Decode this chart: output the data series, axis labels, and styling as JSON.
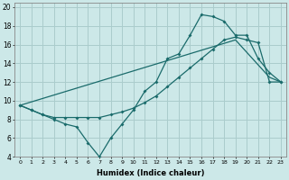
{
  "xlabel": "Humidex (Indice chaleur)",
  "xlim": [
    -0.5,
    23.5
  ],
  "ylim": [
    4,
    20.5
  ],
  "yticks": [
    4,
    6,
    8,
    10,
    12,
    14,
    16,
    18,
    20
  ],
  "xticks": [
    0,
    1,
    2,
    3,
    4,
    5,
    6,
    7,
    8,
    9,
    10,
    11,
    12,
    13,
    14,
    15,
    16,
    17,
    18,
    19,
    20,
    21,
    22,
    23
  ],
  "bg_color": "#cce8e8",
  "grid_color": "#aacccc",
  "line_color": "#1a6b6b",
  "line1_x": [
    0,
    1,
    2,
    3,
    4,
    5,
    6,
    7,
    8,
    9,
    10,
    11,
    12,
    13,
    14,
    15,
    16,
    17,
    18,
    19,
    20,
    21,
    22,
    23
  ],
  "line1_y": [
    9.5,
    9.0,
    8.5,
    8.0,
    7.5,
    7.2,
    5.5,
    4.0,
    6.0,
    7.5,
    9.0,
    11.0,
    12.0,
    14.5,
    15.0,
    17.0,
    19.2,
    19.0,
    18.5,
    17.0,
    17.0,
    14.5,
    13.0,
    12.0
  ],
  "line2_x": [
    0,
    1,
    2,
    3,
    4,
    5,
    6,
    7,
    8,
    9,
    10,
    11,
    12,
    13,
    14,
    15,
    16,
    17,
    18,
    19,
    20,
    21,
    22,
    23
  ],
  "line2_y": [
    9.5,
    9.0,
    8.5,
    8.2,
    8.2,
    8.2,
    8.2,
    8.2,
    8.5,
    8.8,
    9.2,
    9.8,
    10.5,
    11.5,
    12.5,
    13.5,
    14.5,
    15.5,
    16.5,
    16.8,
    16.5,
    16.2,
    12.0,
    12.0
  ],
  "line3_x": [
    0,
    19,
    22,
    23
  ],
  "line3_y": [
    9.5,
    16.5,
    12.5,
    12.0
  ]
}
